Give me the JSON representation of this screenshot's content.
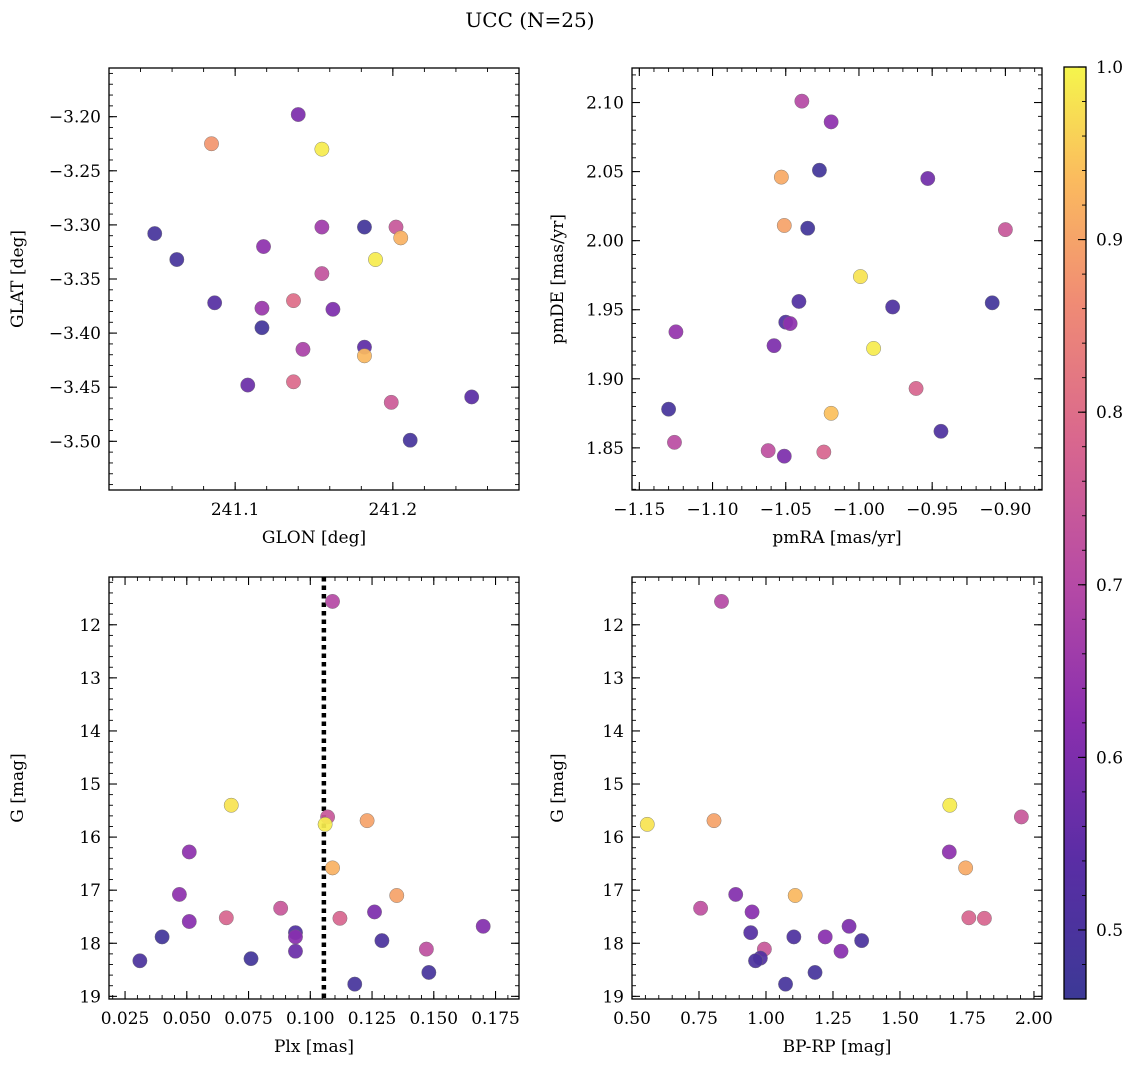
{
  "figure": {
    "title": "UCC (N=25)"
  },
  "colorbar": {
    "min": 0.46,
    "max": 1.0,
    "ticks": [
      0.5,
      0.6,
      0.7,
      0.8,
      0.9,
      1.0
    ],
    "tick_labels": [
      "0.5",
      "0.6",
      "0.7",
      "0.8",
      "0.9",
      "1.0"
    ],
    "colormap": "plasma"
  },
  "chart_data": [
    {
      "type": "scatter",
      "xlabel": "GLON [deg]",
      "ylabel": "GLAT [deg]",
      "xlim": [
        241.02,
        241.28
      ],
      "ylim": [
        -3.545,
        -3.155
      ],
      "xticks": [
        241.1,
        241.2
      ],
      "xtick_labels": [
        "241.1",
        "241.2"
      ],
      "yticks": [
        -3.2,
        -3.25,
        -3.3,
        -3.35,
        -3.4,
        -3.45,
        -3.5
      ],
      "ytick_labels": [
        "−3.20",
        "−3.25",
        "−3.30",
        "−3.35",
        "−3.40",
        "−3.45",
        "−3.50"
      ],
      "points": [
        {
          "x": 241.085,
          "y": -3.225,
          "c": 0.88
        },
        {
          "x": 241.14,
          "y": -3.198,
          "c": 0.6
        },
        {
          "x": 241.155,
          "y": -3.23,
          "c": 0.99
        },
        {
          "x": 241.049,
          "y": -3.308,
          "c": 0.49
        },
        {
          "x": 241.063,
          "y": -3.332,
          "c": 0.49
        },
        {
          "x": 241.118,
          "y": -3.32,
          "c": 0.63
        },
        {
          "x": 241.155,
          "y": -3.302,
          "c": 0.66
        },
        {
          "x": 241.182,
          "y": -3.302,
          "c": 0.48
        },
        {
          "x": 241.202,
          "y": -3.302,
          "c": 0.74
        },
        {
          "x": 241.205,
          "y": -3.312,
          "c": 0.92
        },
        {
          "x": 241.189,
          "y": -3.332,
          "c": 0.99
        },
        {
          "x": 241.155,
          "y": -3.345,
          "c": 0.73
        },
        {
          "x": 241.087,
          "y": -3.372,
          "c": 0.53
        },
        {
          "x": 241.117,
          "y": -3.377,
          "c": 0.65
        },
        {
          "x": 241.137,
          "y": -3.37,
          "c": 0.8
        },
        {
          "x": 241.162,
          "y": -3.378,
          "c": 0.6
        },
        {
          "x": 241.117,
          "y": -3.395,
          "c": 0.48
        },
        {
          "x": 241.143,
          "y": -3.415,
          "c": 0.68
        },
        {
          "x": 241.182,
          "y": -3.413,
          "c": 0.55
        },
        {
          "x": 241.182,
          "y": -3.421,
          "c": 0.93
        },
        {
          "x": 241.108,
          "y": -3.448,
          "c": 0.57
        },
        {
          "x": 241.137,
          "y": -3.445,
          "c": 0.79
        },
        {
          "x": 241.199,
          "y": -3.464,
          "c": 0.75
        },
        {
          "x": 241.25,
          "y": -3.459,
          "c": 0.54
        },
        {
          "x": 241.211,
          "y": -3.499,
          "c": 0.49
        }
      ]
    },
    {
      "type": "scatter",
      "xlabel": "pmRA [mas/yr]",
      "ylabel": "pmDE [mas/yr]",
      "xlim": [
        -1.155,
        -0.875
      ],
      "ylim": [
        1.8195,
        2.125
      ],
      "xticks": [
        -1.15,
        -1.1,
        -1.05,
        -1.0,
        -0.95,
        -0.9
      ],
      "xtick_labels": [
        "−1.15",
        "−1.10",
        "−1.05",
        "−1.00",
        "−0.95",
        "−0.90"
      ],
      "yticks": [
        1.85,
        1.9,
        1.95,
        2.0,
        2.05,
        2.1
      ],
      "ytick_labels": [
        "1.85",
        "1.90",
        "1.95",
        "2.00",
        "2.05",
        "2.10"
      ],
      "points": [
        {
          "x": -1.039,
          "y": 2.101,
          "c": 0.7
        },
        {
          "x": -1.019,
          "y": 2.086,
          "c": 0.63
        },
        {
          "x": -1.053,
          "y": 2.046,
          "c": 0.91
        },
        {
          "x": -1.027,
          "y": 2.051,
          "c": 0.48
        },
        {
          "x": -0.953,
          "y": 2.045,
          "c": 0.58
        },
        {
          "x": -1.051,
          "y": 2.011,
          "c": 0.9
        },
        {
          "x": -1.035,
          "y": 2.009,
          "c": 0.48
        },
        {
          "x": -0.9,
          "y": 2.008,
          "c": 0.74
        },
        {
          "x": -0.999,
          "y": 1.974,
          "c": 0.98
        },
        {
          "x": -1.041,
          "y": 1.956,
          "c": 0.52
        },
        {
          "x": -0.977,
          "y": 1.952,
          "c": 0.51
        },
        {
          "x": -0.909,
          "y": 1.955,
          "c": 0.48
        },
        {
          "x": -1.05,
          "y": 1.941,
          "c": 0.52
        },
        {
          "x": -1.047,
          "y": 1.94,
          "c": 0.63
        },
        {
          "x": -1.125,
          "y": 1.934,
          "c": 0.64
        },
        {
          "x": -1.058,
          "y": 1.924,
          "c": 0.6
        },
        {
          "x": -0.99,
          "y": 1.922,
          "c": 0.99
        },
        {
          "x": -0.961,
          "y": 1.893,
          "c": 0.78
        },
        {
          "x": -1.13,
          "y": 1.878,
          "c": 0.49
        },
        {
          "x": -1.019,
          "y": 1.875,
          "c": 0.94
        },
        {
          "x": -0.944,
          "y": 1.862,
          "c": 0.51
        },
        {
          "x": -1.126,
          "y": 1.854,
          "c": 0.71
        },
        {
          "x": -1.062,
          "y": 1.848,
          "c": 0.72
        },
        {
          "x": -1.051,
          "y": 1.844,
          "c": 0.6
        },
        {
          "x": -1.024,
          "y": 1.847,
          "c": 0.78
        }
      ]
    },
    {
      "type": "scatter",
      "xlabel": "Plx [mas]",
      "ylabel": "G [mag]",
      "xlim": [
        0.0185,
        0.1845
      ],
      "ylim": [
        19.05,
        11.1
      ],
      "y_inverted": true,
      "xticks": [
        0.025,
        0.05,
        0.075,
        0.1,
        0.125,
        0.15,
        0.175
      ],
      "xtick_labels": [
        "0.025",
        "0.050",
        "0.075",
        "0.100",
        "0.125",
        "0.150",
        "0.175"
      ],
      "yticks": [
        12,
        13,
        14,
        15,
        16,
        17,
        18,
        19
      ],
      "ytick_labels": [
        "12",
        "13",
        "14",
        "15",
        "16",
        "17",
        "18",
        "19"
      ],
      "vline": {
        "x": 0.1055
      },
      "points": [
        {
          "x": 0.109,
          "y": 11.56,
          "c": 0.7
        },
        {
          "x": 0.068,
          "y": 15.4,
          "c": 0.98
        },
        {
          "x": 0.107,
          "y": 15.62,
          "c": 0.74
        },
        {
          "x": 0.106,
          "y": 15.76,
          "c": 0.99
        },
        {
          "x": 0.123,
          "y": 15.69,
          "c": 0.9
        },
        {
          "x": 0.051,
          "y": 16.28,
          "c": 0.63
        },
        {
          "x": 0.109,
          "y": 16.58,
          "c": 0.92
        },
        {
          "x": 0.047,
          "y": 17.08,
          "c": 0.63
        },
        {
          "x": 0.135,
          "y": 17.1,
          "c": 0.9
        },
        {
          "x": 0.088,
          "y": 17.34,
          "c": 0.74
        },
        {
          "x": 0.126,
          "y": 17.41,
          "c": 0.6
        },
        {
          "x": 0.051,
          "y": 17.59,
          "c": 0.62
        },
        {
          "x": 0.066,
          "y": 17.52,
          "c": 0.78
        },
        {
          "x": 0.112,
          "y": 17.53,
          "c": 0.78
        },
        {
          "x": 0.17,
          "y": 17.68,
          "c": 0.61
        },
        {
          "x": 0.094,
          "y": 17.8,
          "c": 0.52
        },
        {
          "x": 0.094,
          "y": 17.88,
          "c": 0.62
        },
        {
          "x": 0.04,
          "y": 17.88,
          "c": 0.48
        },
        {
          "x": 0.129,
          "y": 17.95,
          "c": 0.5
        },
        {
          "x": 0.147,
          "y": 18.11,
          "c": 0.72
        },
        {
          "x": 0.094,
          "y": 18.15,
          "c": 0.57
        },
        {
          "x": 0.031,
          "y": 18.33,
          "c": 0.5
        },
        {
          "x": 0.076,
          "y": 18.29,
          "c": 0.48
        },
        {
          "x": 0.148,
          "y": 18.55,
          "c": 0.49
        },
        {
          "x": 0.118,
          "y": 18.77,
          "c": 0.49
        }
      ]
    },
    {
      "type": "scatter",
      "xlabel": "BP-RP [mag]",
      "ylabel": "G [mag]",
      "xlim": [
        0.5,
        2.03
      ],
      "ylim": [
        19.05,
        11.1
      ],
      "y_inverted": true,
      "xticks": [
        0.5,
        0.75,
        1.0,
        1.25,
        1.5,
        1.75,
        2.0
      ],
      "xtick_labels": [
        "0.50",
        "0.75",
        "1.00",
        "1.25",
        "1.50",
        "1.75",
        "2.00"
      ],
      "yticks": [
        12,
        13,
        14,
        15,
        16,
        17,
        18,
        19
      ],
      "ytick_labels": [
        "12",
        "13",
        "14",
        "15",
        "16",
        "17",
        "18",
        "19"
      ],
      "points": [
        {
          "x": 0.834,
          "y": 11.56,
          "c": 0.7
        },
        {
          "x": 0.557,
          "y": 15.76,
          "c": 0.98
        },
        {
          "x": 0.806,
          "y": 15.69,
          "c": 0.9
        },
        {
          "x": 1.686,
          "y": 15.4,
          "c": 0.99
        },
        {
          "x": 1.953,
          "y": 15.62,
          "c": 0.74
        },
        {
          "x": 1.684,
          "y": 16.28,
          "c": 0.63
        },
        {
          "x": 1.745,
          "y": 16.58,
          "c": 0.91
        },
        {
          "x": 0.887,
          "y": 17.08,
          "c": 0.61
        },
        {
          "x": 1.109,
          "y": 17.1,
          "c": 0.93
        },
        {
          "x": 0.756,
          "y": 17.34,
          "c": 0.72
        },
        {
          "x": 0.948,
          "y": 17.41,
          "c": 0.62
        },
        {
          "x": 1.757,
          "y": 17.52,
          "c": 0.78
        },
        {
          "x": 1.815,
          "y": 17.53,
          "c": 0.78
        },
        {
          "x": 1.31,
          "y": 17.68,
          "c": 0.6
        },
        {
          "x": 0.943,
          "y": 17.8,
          "c": 0.53
        },
        {
          "x": 1.221,
          "y": 17.88,
          "c": 0.62
        },
        {
          "x": 1.104,
          "y": 17.88,
          "c": 0.51
        },
        {
          "x": 1.357,
          "y": 17.95,
          "c": 0.5
        },
        {
          "x": 0.994,
          "y": 18.11,
          "c": 0.74
        },
        {
          "x": 1.28,
          "y": 18.15,
          "c": 0.62
        },
        {
          "x": 0.979,
          "y": 18.28,
          "c": 0.52
        },
        {
          "x": 0.961,
          "y": 18.33,
          "c": 0.5
        },
        {
          "x": 1.183,
          "y": 18.55,
          "c": 0.49
        },
        {
          "x": 1.073,
          "y": 18.77,
          "c": 0.49
        }
      ]
    }
  ]
}
